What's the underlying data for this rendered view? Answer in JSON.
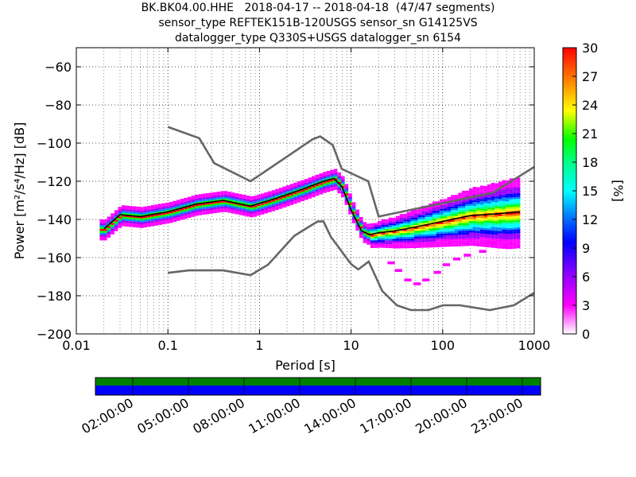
{
  "title": {
    "line1": "BK.BK04.00.HHE   2018-04-17 -- 2018-04-18  (47/47 segments)",
    "line2": "sensor_type REFTEK151B-120USGS sensor_sn G14125VS",
    "line3": "datalogger_type Q330S+USGS datalogger_sn 6154"
  },
  "chart_data": {
    "type": "heatmap",
    "xlabel": "Period [s]",
    "ylabel": "Power [m²/s⁴/Hz] [dB]",
    "xscale": "log",
    "xlim": [
      0.01,
      1000
    ],
    "ylim": [
      -200,
      -50
    ],
    "x_ticks": [
      "0.01",
      "0.1",
      "1",
      "10",
      "100",
      "1000"
    ],
    "y_ticks": [
      "−60",
      "−80",
      "−100",
      "−120",
      "−140",
      "−160",
      "−180",
      "−200"
    ],
    "y_tick_values": [
      -60,
      -80,
      -100,
      -120,
      -140,
      -160,
      -180,
      -200
    ],
    "colorbar": {
      "label": "[%]",
      "range": [
        0,
        30
      ],
      "ticks": [
        "30",
        "27",
        "24",
        "21",
        "18",
        "15",
        "12",
        "9",
        "6",
        "3",
        "0"
      ],
      "colormap": "pqlx"
    },
    "series": [
      {
        "role": "high-noise-model",
        "color": "#666666",
        "x": [
          0.1,
          0.22,
          0.32,
          0.8,
          3.8,
          4.6,
          6.3,
          7.9,
          15.4,
          20,
          354.8,
          1000
        ],
        "y": [
          -91.5,
          -97.4,
          -110.5,
          -120,
          -98,
          -96.5,
          -101,
          -113.5,
          -120,
          -138.5,
          -126,
          -112.5
        ]
      },
      {
        "role": "low-noise-model",
        "color": "#666666",
        "x": [
          0.1,
          0.17,
          0.4,
          0.8,
          1.24,
          2.4,
          4.3,
          5.0,
          6.0,
          10,
          12,
          15.6,
          21.9,
          31.6,
          45,
          70,
          101,
          154,
          328,
          600,
          1000
        ],
        "y": [
          -168,
          -166.7,
          -166.7,
          -169.2,
          -163.7,
          -148.6,
          -141.1,
          -141.1,
          -149,
          -163.4,
          -166.2,
          -162.1,
          -177.5,
          -185,
          -187.5,
          -187.5,
          -185,
          -185,
          -187.5,
          -185,
          -178.5
        ]
      },
      {
        "role": "mode",
        "color": "#000000",
        "x": [
          0.02,
          0.03,
          0.05,
          0.1,
          0.2,
          0.4,
          0.8,
          1.5,
          3,
          5,
          6.5,
          8,
          10,
          13,
          16,
          20,
          30,
          50,
          100,
          200,
          400,
          700
        ],
        "y": [
          -145,
          -137.5,
          -138.5,
          -136,
          -132,
          -130,
          -133,
          -129,
          -124,
          -120,
          -118.5,
          -123,
          -135,
          -146,
          -148,
          -147,
          -146,
          -144,
          -141,
          -138,
          -137,
          -136
        ]
      }
    ],
    "density_bands": [
      {
        "x": [
          0.018,
          0.03,
          0.05,
          0.1,
          0.2,
          0.4,
          0.8,
          1.5,
          3,
          5,
          6.5,
          8,
          10,
          13,
          16,
          20,
          30,
          50,
          100,
          200,
          400,
          700
        ],
        "y": [
          -143.5,
          -135,
          -136,
          -134,
          -130,
          -128,
          -131,
          -127,
          -122,
          -118,
          -116.5,
          -121,
          -133,
          -144,
          -146,
          -145,
          -144,
          -142,
          -139,
          -136,
          -135,
          -134
        ],
        "percent": 22
      },
      {
        "x": [
          0.018,
          0.03,
          0.05,
          0.1,
          0.2,
          0.4,
          0.8,
          1.5,
          3,
          5,
          6.5,
          8,
          10,
          13,
          16,
          20,
          30,
          50,
          100,
          200,
          400,
          700
        ],
        "y": [
          -146.5,
          -140,
          -141,
          -138,
          -134,
          -132,
          -135,
          -131,
          -126,
          -122,
          -120.5,
          -125,
          -137,
          -148,
          -150,
          -149,
          -148,
          -146,
          -143,
          -140,
          -139,
          -138
        ],
        "percent": 18
      }
    ],
    "availability_bar": {
      "time_ticks": [
        "02:00:00",
        "05:00:00",
        "08:00:00",
        "11:00:00",
        "14:00:00",
        "17:00:00",
        "20:00:00",
        "23:00:00"
      ],
      "data_color": "#0000ff",
      "gap_color": "#008000"
    }
  }
}
